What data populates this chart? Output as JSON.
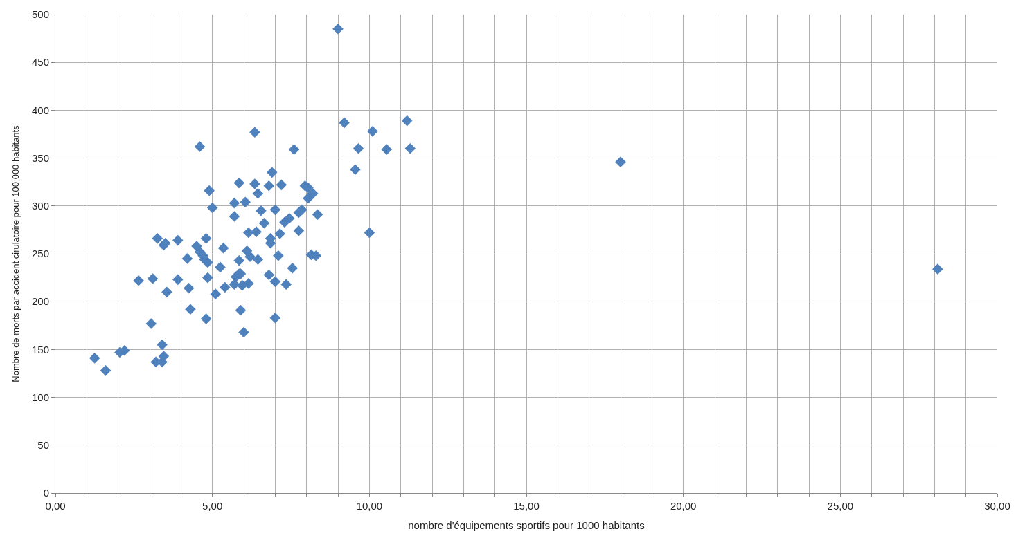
{
  "chart_data": {
    "type": "scatter",
    "xlabel": "nombre d'équipements sportifs pour 1000 habitants",
    "ylabel": "Nombre de morts par accident cirulatoire pour 100 000 habitants",
    "marker": "diamond",
    "grid": true,
    "xlim": [
      0,
      30
    ],
    "ylim": [
      0,
      500
    ],
    "xticks": [
      {
        "value": 0,
        "label": "0,00"
      },
      {
        "value": 1,
        "label": null
      },
      {
        "value": 2,
        "label": null
      },
      {
        "value": 3,
        "label": null
      },
      {
        "value": 4,
        "label": null
      },
      {
        "value": 5,
        "label": "5,00"
      },
      {
        "value": 6,
        "label": null
      },
      {
        "value": 7,
        "label": null
      },
      {
        "value": 8,
        "label": null
      },
      {
        "value": 9,
        "label": null
      },
      {
        "value": 10,
        "label": "10,00"
      },
      {
        "value": 11,
        "label": null
      },
      {
        "value": 12,
        "label": null
      },
      {
        "value": 13,
        "label": null
      },
      {
        "value": 14,
        "label": null
      },
      {
        "value": 15,
        "label": "15,00"
      },
      {
        "value": 16,
        "label": null
      },
      {
        "value": 17,
        "label": null
      },
      {
        "value": 18,
        "label": null
      },
      {
        "value": 19,
        "label": null
      },
      {
        "value": 20,
        "label": "20,00"
      },
      {
        "value": 21,
        "label": null
      },
      {
        "value": 22,
        "label": null
      },
      {
        "value": 23,
        "label": null
      },
      {
        "value": 24,
        "label": null
      },
      {
        "value": 25,
        "label": "25,00"
      },
      {
        "value": 26,
        "label": null
      },
      {
        "value": 27,
        "label": null
      },
      {
        "value": 28,
        "label": null
      },
      {
        "value": 29,
        "label": null
      },
      {
        "value": 30,
        "label": "30,00"
      }
    ],
    "yticks": [
      0,
      50,
      100,
      150,
      200,
      250,
      300,
      350,
      400,
      450,
      500
    ],
    "series": [
      {
        "color": "#4f81bd",
        "x": [
          1.25,
          1.6,
          2.05,
          2.2,
          2.65,
          3.05,
          3.1,
          3.2,
          3.25,
          3.4,
          3.4,
          3.45,
          3.45,
          3.5,
          3.55,
          3.9,
          3.9,
          4.2,
          4.25,
          4.3,
          4.5,
          4.6,
          4.6,
          4.7,
          4.75,
          4.8,
          4.8,
          4.85,
          4.85,
          4.9,
          5.0,
          5.1,
          5.25,
          5.35,
          5.4,
          5.7,
          5.7,
          5.7,
          5.75,
          5.85,
          5.85,
          5.85,
          5.9,
          5.9,
          5.95,
          6.0,
          6.05,
          6.1,
          6.15,
          6.15,
          6.2,
          6.35,
          6.35,
          6.4,
          6.45,
          6.45,
          6.55,
          6.65,
          6.8,
          6.8,
          6.85,
          6.85,
          6.9,
          7.0,
          7.0,
          7.0,
          7.1,
          7.15,
          7.2,
          7.3,
          7.35,
          7.45,
          7.55,
          7.6,
          7.75,
          7.75,
          7.85,
          7.95,
          8.05,
          8.05,
          8.15,
          8.2,
          8.3,
          8.35,
          9.0,
          9.2,
          9.55,
          9.65,
          10.0,
          10.1,
          10.55,
          11.2,
          11.3,
          18.0,
          28.1
        ],
        "values": [
          141,
          128,
          147,
          149,
          222,
          177,
          224,
          137,
          266,
          137,
          155,
          143,
          259,
          261,
          210,
          264,
          223,
          245,
          214,
          192,
          258,
          362,
          252,
          248,
          244,
          266,
          182,
          225,
          241,
          316,
          298,
          208,
          236,
          256,
          215,
          303,
          289,
          218,
          226,
          243,
          324,
          229,
          191,
          229,
          217,
          168,
          304,
          253,
          219,
          272,
          247,
          323,
          377,
          273,
          313,
          244,
          295,
          282,
          321,
          228,
          266,
          261,
          335,
          183,
          296,
          221,
          248,
          271,
          322,
          283,
          218,
          287,
          235,
          359,
          274,
          293,
          296,
          321,
          319,
          308,
          249,
          313,
          248,
          291,
          485,
          387,
          338,
          360,
          272,
          378,
          359,
          389,
          360,
          346,
          234
        ]
      }
    ]
  }
}
